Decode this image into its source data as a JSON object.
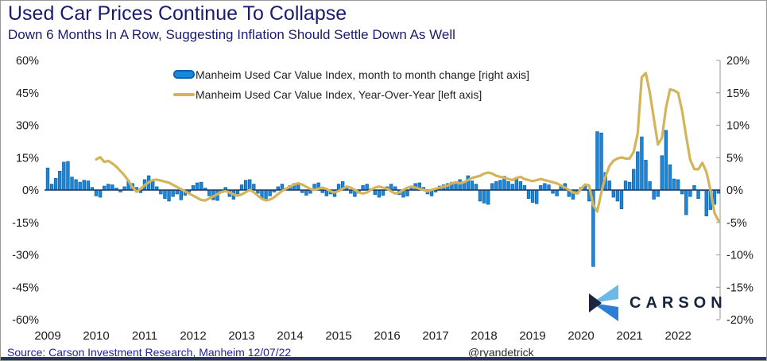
{
  "header": {
    "title": "Used Car Prices Continue To Collapse",
    "subtitle": "Down 6 Months In A Row, Suggesting Inflation Should Settle Down As Well"
  },
  "legend": [
    {
      "label": "Manheim Used Car Value Index, month to month change [right axis]",
      "swatch": "bar-swatch"
    },
    {
      "label": "Manheim Used Car Value Index, Year-Over-Year [left axis]",
      "swatch": "line-swatch"
    }
  ],
  "footer": {
    "source": "Source: Carson Investment Research, Manheim  12/07/22",
    "handle": "@ryandetrick"
  },
  "logo": {
    "text": "CARSON"
  },
  "colors": {
    "bar_fill": "#1b87d9",
    "bar_border": "#0f63ad",
    "line": "#d4b45a",
    "zero_line": "#17365d",
    "right_axis": "#a6a6a6",
    "tick_text": "#1a1a1a",
    "navy": "#1b1b6e"
  },
  "chart_data": {
    "type": "bar+line",
    "title": "Used Car Prices Continue To Collapse",
    "x_start": "2009-01",
    "x_end": "2022-11",
    "x_year_labels": [
      "2009",
      "2010",
      "2011",
      "2012",
      "2013",
      "2014",
      "2015",
      "2016",
      "2017",
      "2018",
      "2019",
      "2020",
      "2021",
      "2022"
    ],
    "left_axis": {
      "ticks": [
        60,
        45,
        30,
        15,
        0,
        -15,
        -30,
        -45,
        -60
      ],
      "range": [
        -60,
        60
      ],
      "unit": "%"
    },
    "right_axis": {
      "ticks": [
        20,
        15,
        10,
        5,
        0,
        -5,
        -10,
        -15,
        -20
      ],
      "range": [
        -20,
        20
      ],
      "unit": "%"
    },
    "grid": false,
    "legend_position": "top-center",
    "series": [
      {
        "name": "Manheim Used Car Value Index, month to month change",
        "axis": "right",
        "type": "bar",
        "values": [
          3.4,
          0.9,
          1.8,
          2.9,
          4.3,
          4.4,
          2.0,
          1.6,
          1.2,
          1.5,
          1.4,
          0.4,
          -0.9,
          -1.1,
          0.6,
          0.9,
          0.8,
          0.3,
          -0.3,
          0.5,
          1.4,
          1.0,
          0.4,
          -0.4,
          1.6,
          2.2,
          1.3,
          0.5,
          -0.6,
          -1.3,
          -1.7,
          -1.0,
          -0.6,
          -1.5,
          -0.8,
          -0.3,
          0.7,
          1.1,
          1.2,
          0.3,
          -0.9,
          -1.5,
          -1.6,
          -0.4,
          0.4,
          -1.0,
          -1.4,
          -0.6,
          0.8,
          1.5,
          1.6,
          0.9,
          -0.5,
          -1.2,
          -1.5,
          -0.9,
          -0.3,
          0.5,
          0.9,
          0.3,
          0.7,
          1.0,
          0.8,
          -0.4,
          -0.8,
          -0.5,
          0.9,
          1.1,
          -0.4,
          -0.9,
          -0.6,
          -1.0,
          0.9,
          1.3,
          0.4,
          -0.5,
          -1.0,
          -0.5,
          0.7,
          0.9,
          0.2,
          -0.7,
          -1.1,
          -0.8,
          0.5,
          0.9,
          0.5,
          -0.7,
          -1.1,
          -0.9,
          0.4,
          1.0,
          1.1,
          0.4,
          -0.6,
          -0.9,
          -0.3,
          0.6,
          0.8,
          1.0,
          1.2,
          0.9,
          1.6,
          1.2,
          2.2,
          1.4,
          0.9,
          -1.7,
          -2.0,
          -2.2,
          1.0,
          1.3,
          1.5,
          2.1,
          1.3,
          0.9,
          1.9,
          1.3,
          0.7,
          -1.3,
          -1.9,
          -2.1,
          0.7,
          1.0,
          0.8,
          -0.5,
          -0.9,
          0.6,
          1.0,
          -1.0,
          -1.4,
          -0.6,
          0.4,
          0.7,
          -1.7,
          -11.8,
          9.0,
          8.8,
          2.7,
          1.4,
          -1.1,
          -1.7,
          -2.9,
          1.4,
          1.2,
          3.2,
          5.9,
          8.2,
          4.6,
          1.3,
          -1.4,
          -1.0,
          5.3,
          9.2,
          3.9,
          1.7,
          1.6,
          -0.6,
          -3.8,
          -1.0,
          0.7,
          -1.3,
          -0.1,
          -4.0,
          -3.0,
          -2.2,
          -0.5
        ]
      },
      {
        "name": "Manheim Used Car Value Index, Year-Over-Year",
        "axis": "left",
        "type": "line",
        "values": [
          null,
          null,
          null,
          null,
          null,
          null,
          null,
          null,
          null,
          null,
          null,
          null,
          14.2,
          15.2,
          13.0,
          13.5,
          12.3,
          10.8,
          8.8,
          6.8,
          4.2,
          1.2,
          -0.8,
          0.6,
          2.2,
          3.6,
          4.6,
          4.8,
          4.4,
          3.9,
          3.4,
          2.4,
          1.4,
          0.4,
          -0.6,
          -1.6,
          -2.6,
          -3.6,
          -4.6,
          -4.8,
          -3.9,
          -2.9,
          -1.9,
          -0.9,
          -0.5,
          -1.1,
          -2.1,
          -2.6,
          -2.0,
          -1.0,
          0.1,
          -1.0,
          -2.6,
          -4.1,
          -4.8,
          -4.4,
          -3.4,
          -1.9,
          -0.4,
          0.6,
          1.6,
          2.6,
          3.1,
          2.5,
          1.5,
          0.5,
          0.1,
          0.6,
          1.1,
          0.5,
          -0.6,
          -1.1,
          -0.4,
          0.6,
          1.6,
          1.1,
          0.1,
          -1.1,
          -1.6,
          -1.1,
          0.1,
          1.1,
          1.6,
          1.1,
          0.6,
          -0.6,
          -1.6,
          -1.1,
          0.1,
          1.1,
          1.6,
          1.1,
          0.6,
          0.1,
          -0.6,
          0.1,
          0.6,
          1.1,
          1.6,
          2.1,
          3.1,
          3.6,
          3.1,
          3.6,
          4.6,
          5.6,
          6.1,
          6.6,
          7.6,
          8.1,
          7.6,
          6.6,
          6.1,
          5.6,
          5.1,
          4.6,
          5.6,
          6.1,
          5.1,
          4.6,
          4.1,
          4.6,
          5.1,
          4.6,
          4.1,
          3.6,
          3.1,
          2.1,
          1.1,
          0.1,
          -1.1,
          -1.6,
          0.6,
          2.6,
          2.1,
          -7.1,
          -9.9,
          -1.1,
          6.1,
          11.1,
          13.6,
          14.6,
          15.1,
          14.6,
          14.6,
          17.6,
          26.2,
          52.2,
          54.2,
          45.1,
          33.1,
          21.1,
          24.1,
          38.1,
          46.6,
          46.1,
          45.0,
          36.6,
          24.8,
          14.0,
          9.7,
          9.6,
          12.6,
          8.4,
          0.1,
          -10.6,
          -14.2
        ]
      }
    ]
  }
}
